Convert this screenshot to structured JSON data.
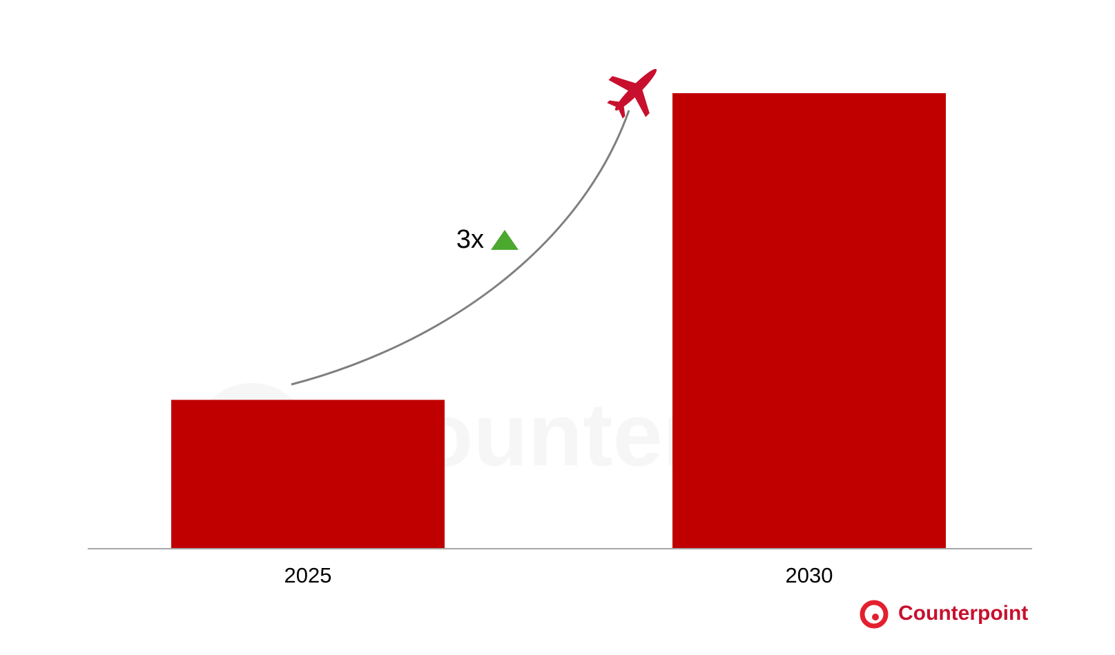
{
  "chart_data": {
    "type": "bar",
    "categories": [
      "2025",
      "2030"
    ],
    "values": [
      1,
      3.06
    ],
    "color": "#c00000",
    "annotation": "3x",
    "watermark": "Counterpoint",
    "logo": "Counterpoint"
  }
}
